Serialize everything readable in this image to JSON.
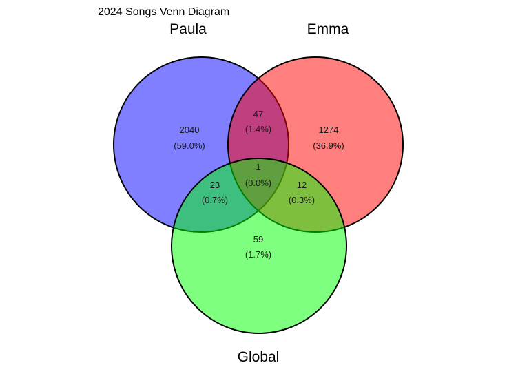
{
  "title": "2024 Songs Venn Diagram",
  "sets": [
    {
      "key": "paula",
      "label": "Paula",
      "color": "#0000FF"
    },
    {
      "key": "emma",
      "label": "Emma",
      "color": "#FF0000"
    },
    {
      "key": "global",
      "label": "Global",
      "color": "#00FF00"
    }
  ],
  "regions": {
    "paula_only": {
      "count": "2040",
      "percent": "(59.0%)"
    },
    "emma_only": {
      "count": "1274",
      "percent": "(36.9%)"
    },
    "global_only": {
      "count": "59",
      "percent": "(1.7%)"
    },
    "paula_emma": {
      "count": "47",
      "percent": "(1.4%)"
    },
    "paula_global": {
      "count": "23",
      "percent": "(0.7%)"
    },
    "emma_global": {
      "count": "12",
      "percent": "(0.3%)"
    },
    "all_three": {
      "count": "1",
      "percent": "(0.0%)"
    }
  }
}
